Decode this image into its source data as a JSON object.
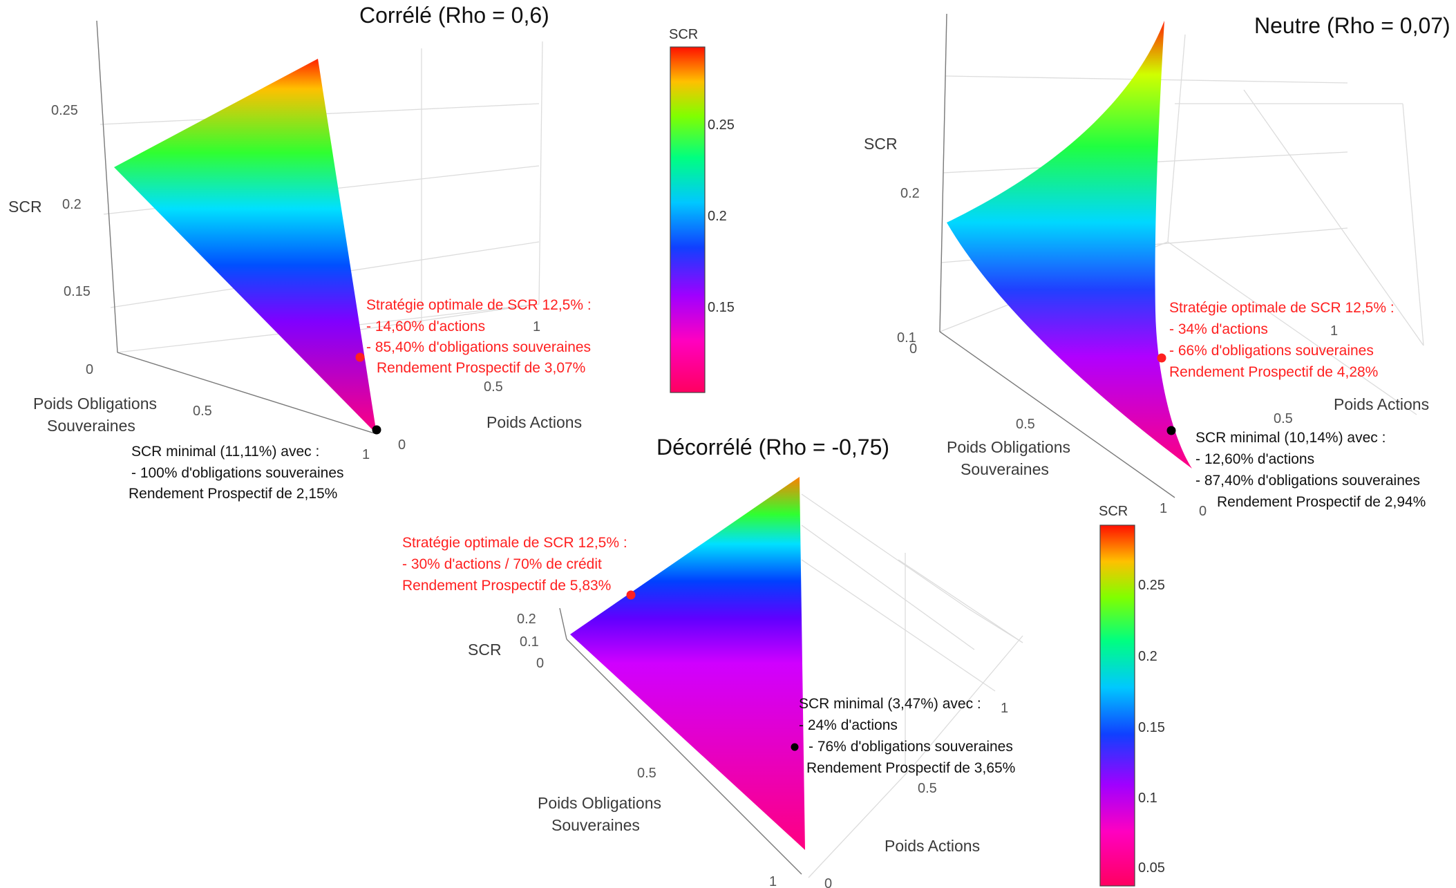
{
  "chart_data": [
    {
      "type": "surface",
      "title": "Corrélé (Rho = 0,6)",
      "axes": {
        "z": {
          "label": "SCR",
          "ticks": [
            "0.15",
            "0.2",
            "0.25"
          ]
        },
        "x": {
          "label_lines": [
            "Poids Obligations",
            "Souveraines"
          ],
          "ticks": [
            "0",
            "0.5",
            "1"
          ]
        },
        "y": {
          "label": "Poids Actions",
          "ticks": [
            "0",
            "0.5",
            "1"
          ]
        }
      },
      "colorscale": "hsv (magenta → blue → cyan → green → yellow → red)",
      "optimal_point": {
        "color": "#ff2020",
        "lines": [
          "Stratégie optimale de SCR 12,5% :",
          "- 14,60% d'actions",
          "- 85,40% d'obligations souveraines",
          "Rendement Prospectif de 3,07%"
        ],
        "actions": 0.146,
        "obligations": 0.854,
        "scr": 0.125
      },
      "min_point": {
        "color": "#000000",
        "lines": [
          "SCR minimal (11,11%) avec :",
          "- 100% d'obligations souveraines",
          "Rendement Prospectif de 2,15%"
        ],
        "actions": 0.0,
        "obligations": 1.0,
        "scr": 0.1111
      }
    },
    {
      "type": "surface",
      "title": "Neutre (Rho = 0,07)",
      "axes": {
        "z": {
          "label": "SCR",
          "ticks": [
            "0.1",
            "0.2"
          ]
        },
        "x": {
          "label_lines": [
            "Poids Obligations",
            "Souveraines"
          ],
          "ticks": [
            "0",
            "0.5",
            "1"
          ]
        },
        "y": {
          "label": "Poids Actions",
          "ticks": [
            "0",
            "0.5",
            "1"
          ]
        }
      },
      "colorscale": "hsv (magenta → blue → cyan → green → yellow → red)",
      "optimal_point": {
        "color": "#ff2020",
        "lines": [
          "Stratégie optimale de SCR 12,5% :",
          "- 34% d'actions",
          "- 66% d'obligations souveraines",
          "Rendement Prospectif de 4,28%"
        ],
        "actions": 0.34,
        "obligations": 0.66,
        "scr": 0.125
      },
      "min_point": {
        "color": "#000000",
        "lines": [
          "SCR minimal (10,14%) avec :",
          "- 12,60% d'actions",
          "- 87,40% d'obligations souveraines",
          "Rendement Prospectif de 2,94%"
        ],
        "actions": 0.126,
        "obligations": 0.874,
        "scr": 0.1014
      }
    },
    {
      "type": "surface",
      "title": "Décorrélé (Rho = -0,75)",
      "axes": {
        "z": {
          "label": "SCR",
          "ticks": [
            "0",
            "0.1",
            "0.2"
          ]
        },
        "x": {
          "label_lines": [
            "Poids Obligations",
            "Souveraines"
          ],
          "ticks": [
            "0.5",
            "1"
          ]
        },
        "y": {
          "label": "Poids Actions",
          "ticks": [
            "0",
            "0.5",
            "1"
          ]
        }
      },
      "colorscale": "hsv (magenta → blue → cyan → green → yellow → red)",
      "optimal_point": {
        "color": "#ff2020",
        "lines": [
          "Stratégie optimale de SCR 12,5% :",
          "- 30% d'actions / 70% de crédit",
          "Rendement Prospectif de 5,83%"
        ],
        "actions": 0.3,
        "credit": 0.7,
        "scr": 0.125
      },
      "min_point": {
        "color": "#000000",
        "lines": [
          "SCR minimal (3,47%) avec :",
          "- 24% d'actions",
          "- 76% d'obligations souveraines",
          "Rendement Prospectif de 3,65%"
        ],
        "actions": 0.24,
        "obligations": 0.76,
        "scr": 0.0347
      }
    }
  ],
  "colorbars": [
    {
      "title": "SCR",
      "ticks": [
        "0.15",
        "0.2",
        "0.25"
      ],
      "range": [
        0.11,
        0.29
      ]
    },
    {
      "title": "SCR",
      "ticks": [
        "0.05",
        "0.1",
        "0.15",
        "0.2",
        "0.25"
      ],
      "range": [
        0.03,
        0.29
      ]
    }
  ],
  "colors": {
    "optimal": "#ff2020",
    "minimal": "#000000",
    "grid": "#dcdcdc"
  }
}
